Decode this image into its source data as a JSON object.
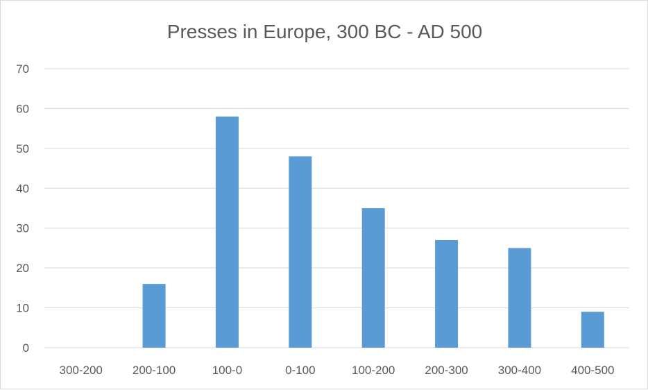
{
  "chart_data": {
    "type": "bar",
    "title": "Presses in Europe, 300 BC - AD 500",
    "xlabel": "",
    "ylabel": "",
    "categories": [
      "300-200",
      "200-100",
      "100-0",
      "0-100",
      "100-200",
      "200-300",
      "300-400",
      "400-500"
    ],
    "series": [
      {
        "values": [
          0,
          16,
          58,
          48,
          35,
          27,
          25,
          9
        ]
      }
    ],
    "ylim": [
      0,
      70
    ],
    "yticks": [
      0,
      10,
      20,
      30,
      40,
      50,
      60,
      70
    ],
    "grid": true,
    "legend": "none",
    "bar_color": "#5b9bd5"
  }
}
